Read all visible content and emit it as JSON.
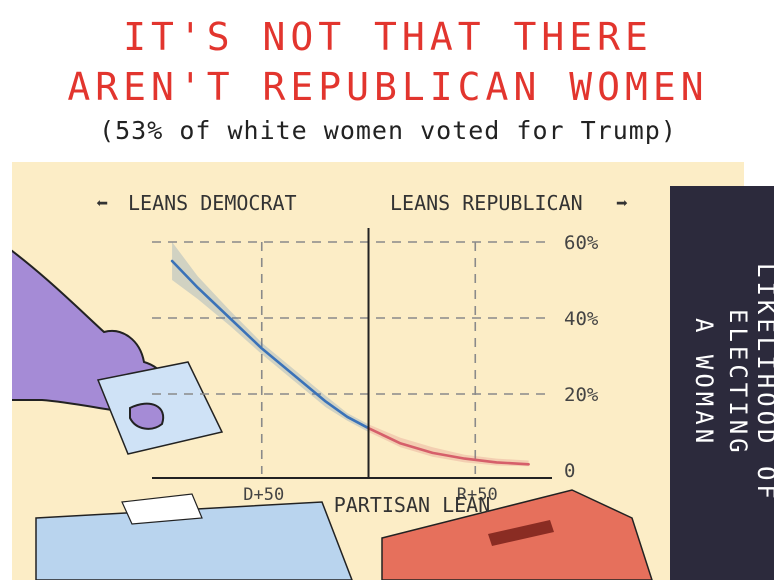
{
  "title": {
    "line1": "IT'S NOT THAT THERE",
    "line2": "AREN'T REPUBLICAN WOMEN",
    "subtitle": "(53% of white women voted for Trump)"
  },
  "side_label": {
    "line1": "LIKELIHOOD OF ELECTING",
    "line2": "A WOMAN"
  },
  "colors": {
    "title": "#e2352e",
    "panel": "#fcedc6",
    "democrat": "#3a72b8",
    "republican": "#d65f6a",
    "hand": "#a58bd6",
    "ballot_box_blue": "#b9d4ee",
    "ballot_box_red": "#e6705c"
  },
  "chart_data": {
    "type": "line",
    "left_annotation": "LEANS DEMOCRAT",
    "right_annotation": "LEANS REPUBLICAN",
    "xlabel": "PARTISAN LEAN",
    "ylabel": "LIKELIHOOD OF ELECTING A WOMAN",
    "x_ticks": [
      {
        "value": -50,
        "label": "D+50"
      },
      {
        "value": 50,
        "label": "R+50"
      }
    ],
    "y_ticks": [
      {
        "value": 0,
        "label": "0"
      },
      {
        "value": 20,
        "label": "20%"
      },
      {
        "value": 40,
        "label": "40%"
      },
      {
        "value": 60,
        "label": "60%"
      }
    ],
    "xlim": [
      -100,
      85
    ],
    "ylim": [
      0,
      60
    ],
    "grid": true,
    "series": [
      {
        "name": "LEANS DEMOCRAT",
        "color": "#3a72b8",
        "x": [
          -92,
          -80,
          -65,
          -50,
          -35,
          -20,
          -10,
          0
        ],
        "y": [
          55,
          48,
          40,
          32,
          25,
          18,
          14,
          11
        ],
        "band_upper": [
          60,
          51,
          42,
          33.5,
          26.5,
          19.5,
          15,
          12
        ],
        "band_lower": [
          50,
          45,
          38,
          30.5,
          23.5,
          16.5,
          13,
          10
        ]
      },
      {
        "name": "LEANS REPUBLICAN",
        "color": "#d65f6a",
        "x": [
          0,
          15,
          30,
          45,
          60,
          75
        ],
        "y": [
          11,
          7,
          4.5,
          3,
          2,
          1.5
        ],
        "band_upper": [
          12,
          8.5,
          6,
          4,
          3,
          2.5
        ],
        "band_lower": [
          10,
          6,
          3.5,
          2,
          1.2,
          1
        ]
      }
    ]
  }
}
